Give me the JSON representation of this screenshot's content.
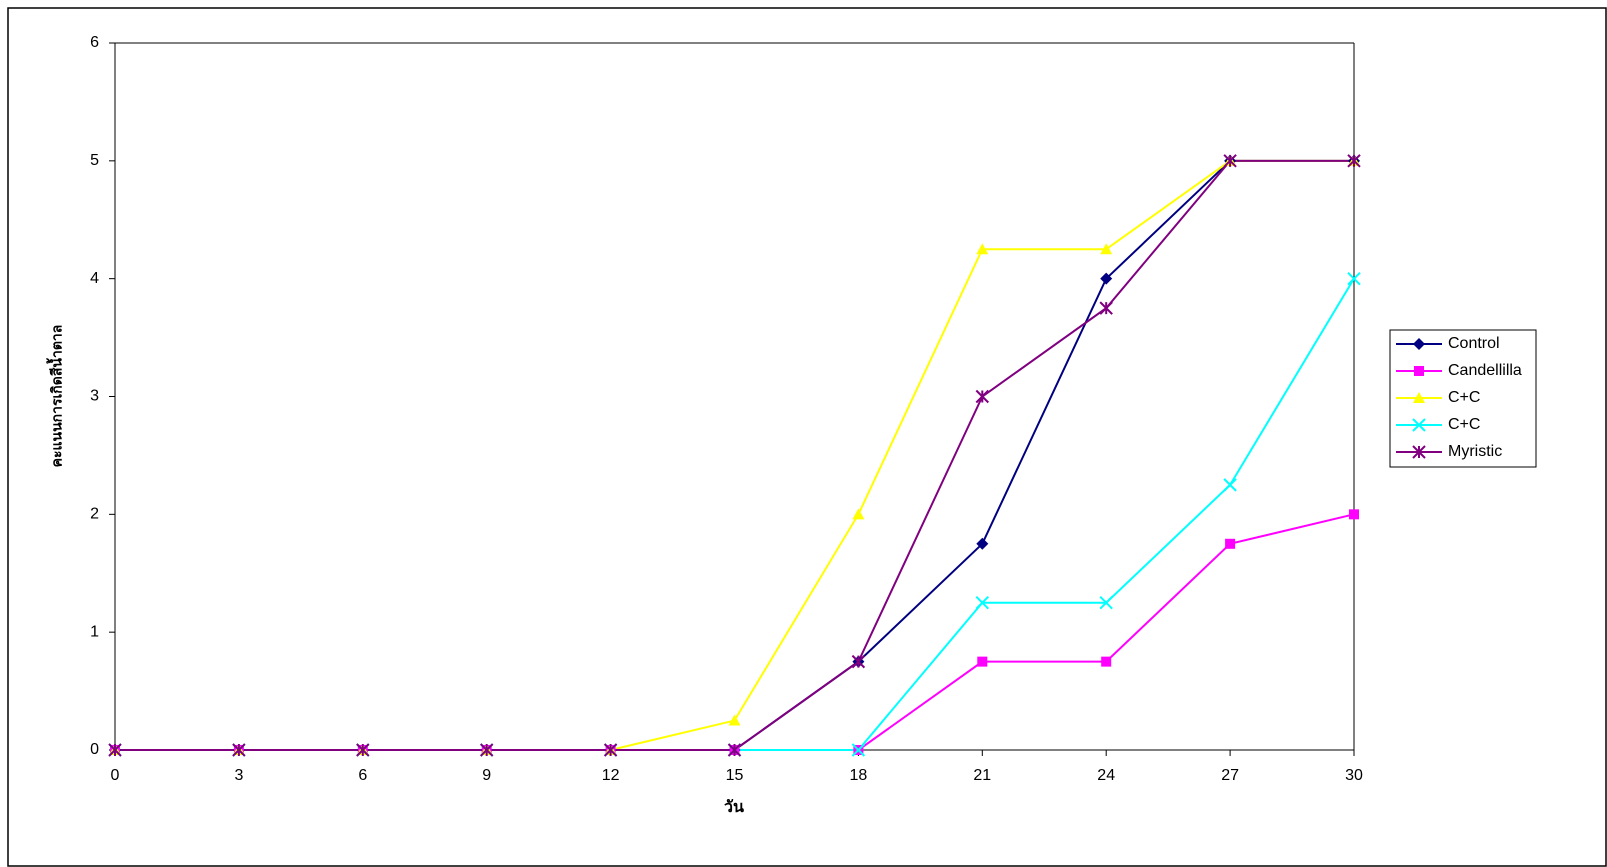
{
  "chart_data": {
    "type": "line",
    "x_label": "วัน",
    "y_label": "คะแนนการเกิดสีน้ำตาล",
    "x": [
      0,
      3,
      6,
      9,
      12,
      15,
      18,
      21,
      24,
      27,
      30
    ],
    "xlim": [
      0,
      30
    ],
    "xticks": [
      0,
      3,
      6,
      9,
      12,
      15,
      18,
      21,
      24,
      27,
      30
    ],
    "ylim": [
      0,
      6
    ],
    "yticks": [
      0,
      1,
      2,
      3,
      4,
      5,
      6
    ],
    "legend": "right",
    "series": [
      {
        "name": "Control",
        "color": "#000080",
        "marker": "diamond",
        "values": [
          0,
          0,
          0,
          0,
          0,
          0,
          0.75,
          1.75,
          4,
          5,
          5
        ]
      },
      {
        "name": "Candellilla",
        "color": "#ff00ff",
        "marker": "square",
        "values": [
          0,
          0,
          0,
          0,
          0,
          0,
          0,
          0.75,
          0.75,
          1.75,
          2
        ]
      },
      {
        "name": "C+C",
        "color": "#ffff00",
        "marker": "triangle",
        "values": [
          0,
          0,
          0,
          0,
          0,
          0.25,
          2,
          4.25,
          4.25,
          5,
          5
        ]
      },
      {
        "name": "C+C",
        "color": "#00ffff",
        "marker": "x",
        "values": [
          0,
          0,
          0,
          0,
          0,
          0,
          0,
          1.25,
          1.25,
          2.25,
          4
        ]
      },
      {
        "name": "Myristic",
        "color": "#800080",
        "marker": "star",
        "values": [
          0,
          0,
          0,
          0,
          0,
          0,
          0.75,
          3,
          3.75,
          5,
          5
        ]
      }
    ]
  }
}
